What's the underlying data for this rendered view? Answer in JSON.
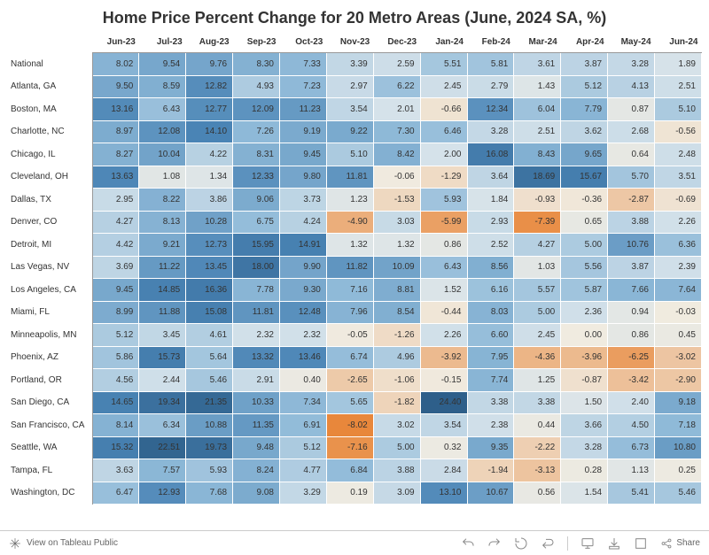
{
  "title": "Home Price Percent Change for 20 Metro Areas (June, 2024 SA, %)",
  "columns": [
    "Jun-23",
    "Jul-23",
    "Aug-23",
    "Sep-23",
    "Oct-23",
    "Nov-23",
    "Dec-23",
    "Jan-24",
    "Feb-24",
    "Mar-24",
    "Apr-24",
    "May-24",
    "Jun-24"
  ],
  "rows": [
    {
      "label": "National",
      "v": [
        8.02,
        9.54,
        9.76,
        8.3,
        7.33,
        3.39,
        2.59,
        5.51,
        5.81,
        3.61,
        3.87,
        3.28,
        1.89
      ]
    },
    {
      "label": "Atlanta, GA",
      "v": [
        9.5,
        8.59,
        12.82,
        4.93,
        7.23,
        2.97,
        6.22,
        2.45,
        2.79,
        1.43,
        5.12,
        4.13,
        2.51
      ]
    },
    {
      "label": "Boston, MA",
      "v": [
        13.16,
        6.43,
        12.77,
        12.09,
        11.23,
        3.54,
        2.01,
        -0.66,
        12.34,
        6.04,
        7.79,
        0.87,
        5.1
      ]
    },
    {
      "label": "Charlotte, NC",
      "v": [
        8.97,
        12.08,
        14.1,
        7.26,
        9.19,
        9.22,
        7.3,
        6.46,
        3.28,
        2.51,
        3.62,
        2.68,
        -0.56
      ]
    },
    {
      "label": "Chicago, IL",
      "v": [
        8.27,
        10.04,
        4.22,
        8.31,
        9.45,
        5.1,
        8.42,
        2.0,
        16.08,
        8.43,
        9.65,
        0.64,
        2.48
      ]
    },
    {
      "label": "Cleveland, OH",
      "v": [
        13.63,
        1.08,
        1.34,
        12.33,
        9.8,
        11.81,
        -0.06,
        -1.29,
        3.64,
        18.69,
        15.67,
        5.7,
        3.51
      ]
    },
    {
      "label": "Dallas, TX",
      "v": [
        2.95,
        8.22,
        3.86,
        9.06,
        3.73,
        1.23,
        -1.53,
        5.93,
        1.84,
        -0.93,
        -0.36,
        -2.87,
        -0.69
      ]
    },
    {
      "label": "Denver, CO",
      "v": [
        4.27,
        8.13,
        10.28,
        6.75,
        4.24,
        -4.9,
        3.03,
        -5.99,
        2.93,
        -7.39,
        0.65,
        3.88,
        2.26
      ]
    },
    {
      "label": "Detroit, MI",
      "v": [
        4.42,
        9.21,
        12.73,
        15.95,
        14.91,
        1.32,
        1.32,
        0.86,
        2.52,
        4.27,
        5.0,
        10.76,
        6.36
      ]
    },
    {
      "label": "Las Vegas, NV",
      "v": [
        3.69,
        11.22,
        13.45,
        18.0,
        9.9,
        11.82,
        10.09,
        6.43,
        8.56,
        1.03,
        5.56,
        3.87,
        2.39
      ]
    },
    {
      "label": "Los Angeles, CA",
      "v": [
        9.45,
        14.85,
        16.36,
        7.78,
        9.3,
        7.16,
        8.81,
        1.52,
        6.16,
        5.57,
        5.87,
        7.66,
        7.64
      ]
    },
    {
      "label": "Miami, FL",
      "v": [
        8.99,
        11.88,
        15.08,
        11.81,
        12.48,
        7.96,
        8.54,
        -0.44,
        8.03,
        5.0,
        2.36,
        0.94,
        -0.03
      ]
    },
    {
      "label": "Minneapolis, MN",
      "v": [
        5.12,
        3.45,
        4.61,
        2.32,
        2.32,
        -0.05,
        -1.26,
        2.26,
        6.6,
        2.45,
        0.0,
        0.86,
        0.45
      ]
    },
    {
      "label": "Phoenix, AZ",
      "v": [
        5.86,
        15.73,
        5.64,
        13.32,
        13.46,
        6.74,
        4.96,
        -3.92,
        7.95,
        -4.36,
        -3.96,
        -6.25,
        -3.02
      ]
    },
    {
      "label": "Portland, OR",
      "v": [
        4.56,
        2.44,
        5.46,
        2.91,
        0.4,
        -2.65,
        -1.06,
        -0.15,
        7.74,
        1.25,
        -0.87,
        -3.42,
        -2.9
      ]
    },
    {
      "label": "San Diego, CA",
      "v": [
        14.65,
        19.34,
        21.35,
        10.33,
        7.34,
        5.65,
        -1.82,
        24.4,
        3.38,
        3.38,
        1.5,
        2.4,
        9.18
      ]
    },
    {
      "label": "San Francisco, CA",
      "v": [
        8.14,
        6.34,
        10.88,
        11.35,
        6.91,
        -8.02,
        3.02,
        3.54,
        2.38,
        0.44,
        3.66,
        4.5,
        7.18
      ]
    },
    {
      "label": "Seattle, WA",
      "v": [
        15.32,
        22.51,
        19.73,
        9.48,
        5.12,
        -7.16,
        5.0,
        0.32,
        9.35,
        -2.22,
        3.28,
        6.73,
        10.8
      ]
    },
    {
      "label": "Tampa, FL",
      "v": [
        3.63,
        7.57,
        5.93,
        8.24,
        4.77,
        6.84,
        3.88,
        2.84,
        -1.94,
        -3.13,
        0.28,
        1.13,
        0.25
      ]
    },
    {
      "label": "Washington, DC",
      "v": [
        6.47,
        12.93,
        7.68,
        9.08,
        3.29,
        0.19,
        3.09,
        13.1,
        10.67,
        0.56,
        1.54,
        5.41,
        5.46
      ]
    }
  ],
  "color_scale": {
    "min": -8.02,
    "max": 24.4,
    "neg_color": "#e8873b",
    "zero_color": "#f0ebe0",
    "low_pos": "#d5e2ea",
    "mid_pos": "#91bbd9",
    "high_pos": "#4a84b5",
    "max_pos": "#2e5f8a"
  },
  "footer": {
    "view_label": "View on Tableau Public",
    "share_label": "Share"
  }
}
